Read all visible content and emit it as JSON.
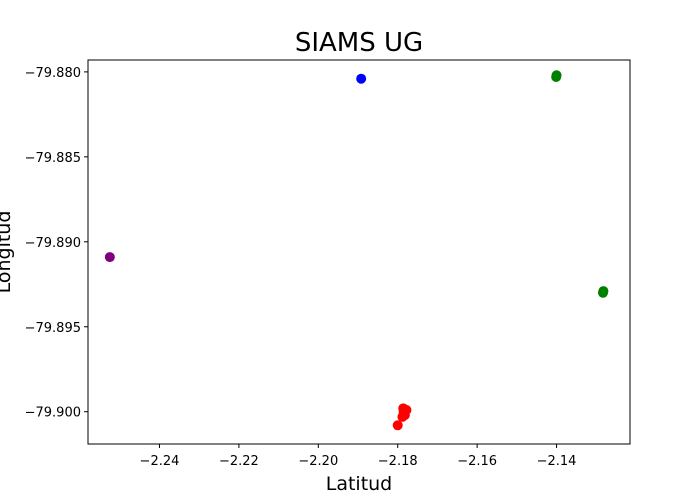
{
  "chart_data": {
    "type": "scatter",
    "title": "SIAMS UG",
    "xlabel": "Latitud",
    "ylabel": "Longitud",
    "xlim": [
      -2.258,
      -2.1215
    ],
    "ylim": [
      -79.9019,
      -79.8793
    ],
    "xticks": [
      -2.24,
      -2.22,
      -2.2,
      -2.18,
      -2.16,
      -2.14
    ],
    "xtick_labels": [
      "−2.24",
      "−2.22",
      "−2.20",
      "−2.18",
      "−2.16",
      "−2.14"
    ],
    "yticks": [
      -79.88,
      -79.885,
      -79.89,
      -79.895,
      -79.9
    ],
    "ytick_labels": [
      "−79.880",
      "−79.885",
      "−79.890",
      "−79.895",
      "−79.900"
    ],
    "grid": false,
    "points": [
      {
        "x": -2.1892,
        "y": -79.8804,
        "color": "#0000ff"
      },
      {
        "x": -2.1401,
        "y": -79.8803,
        "color": "#008000"
      },
      {
        "x": -2.14,
        "y": -79.8802,
        "color": "#008000"
      },
      {
        "x": -2.1282,
        "y": -79.8929,
        "color": "#008000"
      },
      {
        "x": -2.1283,
        "y": -79.893,
        "color": "#008000"
      },
      {
        "x": -2.2525,
        "y": -79.8909,
        "color": "#800080"
      },
      {
        "x": -2.1778,
        "y": -79.8999,
        "color": "#ff0000"
      },
      {
        "x": -2.1785,
        "y": -79.9,
        "color": "#ff0000"
      },
      {
        "x": -2.1788,
        "y": -79.9003,
        "color": "#ff0000"
      },
      {
        "x": -2.1782,
        "y": -79.9002,
        "color": "#ff0000"
      },
      {
        "x": -2.1786,
        "y": -79.8998,
        "color": "#ff0000"
      },
      {
        "x": -2.18,
        "y": -79.9008,
        "color": "#ff0000"
      }
    ]
  }
}
